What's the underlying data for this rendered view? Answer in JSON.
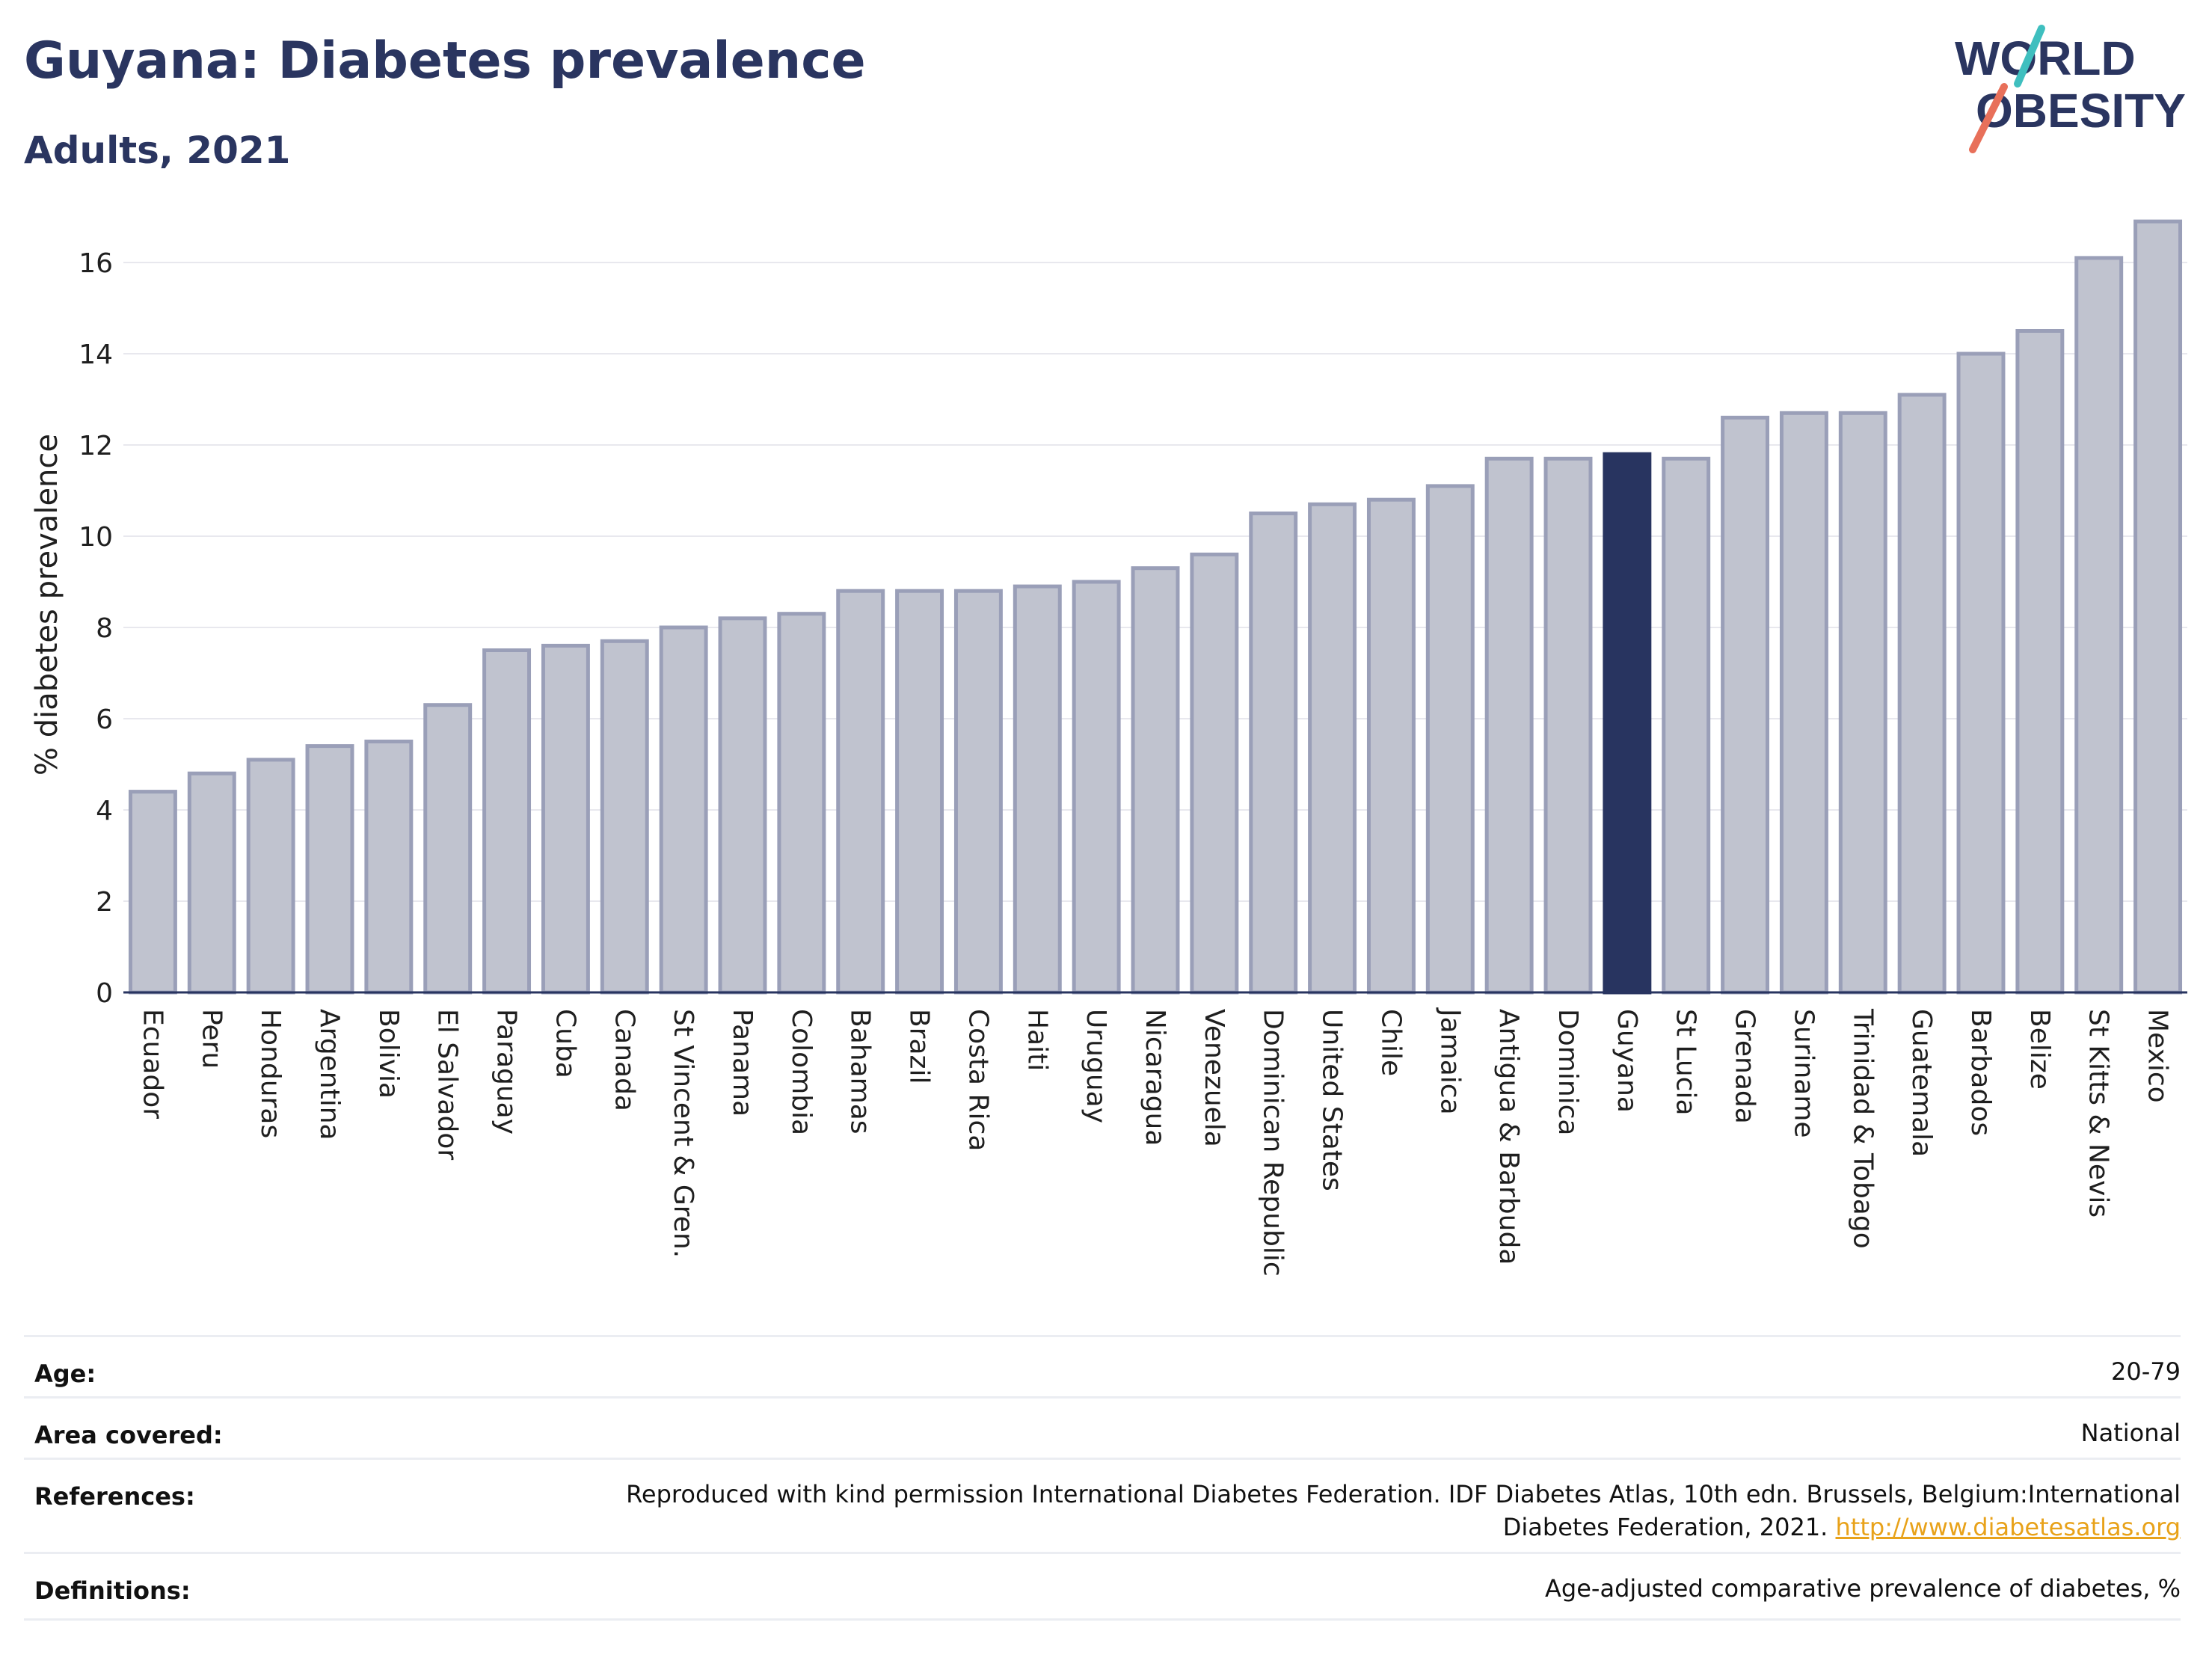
{
  "header": {
    "title": "Guyana: Diabetes prevalence",
    "subtitle": "Adults, 2021",
    "logo_line1": "WORLD",
    "logo_line2": "OBESITY"
  },
  "colors": {
    "title": "#2a3560",
    "bar": "#c0c3cf",
    "bar_edge": "#9a9fb8",
    "highlight": "#283460",
    "logo_teal": "#3fbfbf",
    "logo_coral": "#e8705a",
    "link": "#e8a21a"
  },
  "chart_data": {
    "type": "bar",
    "ylabel": "% diabetes prevalence",
    "xlabel": "",
    "ylim": [
      0,
      17
    ],
    "yticks": [
      0,
      2,
      4,
      6,
      8,
      10,
      12,
      14,
      16
    ],
    "grid": true,
    "highlight": "Guyana",
    "categories": [
      "Ecuador",
      "Peru",
      "Honduras",
      "Argentina",
      "Bolivia",
      "El Salvador",
      "Paraguay",
      "Cuba",
      "Canada",
      "St Vincent & Gren.",
      "Panama",
      "Colombia",
      "Bahamas",
      "Brazil",
      "Costa Rica",
      "Haiti",
      "Uruguay",
      "Nicaragua",
      "Venezuela",
      "Dominican Republic",
      "United States",
      "Chile",
      "Jamaica",
      "Antigua & Barbuda",
      "Dominica",
      "Guyana",
      "St Lucia",
      "Grenada",
      "Suriname",
      "Trinidad & Tobago",
      "Guatemala",
      "Barbados",
      "Belize",
      "St Kitts & Nevis",
      "Mexico"
    ],
    "values": [
      4.4,
      4.8,
      5.1,
      5.4,
      5.5,
      6.3,
      7.5,
      7.6,
      7.7,
      8.0,
      8.2,
      8.3,
      8.8,
      8.8,
      8.8,
      8.9,
      9.0,
      9.3,
      9.6,
      10.5,
      10.7,
      10.8,
      11.1,
      11.7,
      11.7,
      11.8,
      11.7,
      12.6,
      12.7,
      12.7,
      13.1,
      14.0,
      14.5,
      16.1,
      16.9
    ]
  },
  "info": {
    "age_label": "Age:",
    "age_value": "20-79",
    "area_label": "Area covered:",
    "area_value": "National",
    "references_label": "References:",
    "references_value_line1": "Reproduced with kind permission International Diabetes Federation.  IDF Diabetes Atlas, 10th edn. Brussels, Belgium:International",
    "references_value_line2": "Diabetes Federation, 2021.",
    "references_link": "http://www.diabetesatlas.org",
    "definitions_label": "Definitions:",
    "definitions_value": "Age-adjusted comparative prevalence of diabetes, %"
  }
}
